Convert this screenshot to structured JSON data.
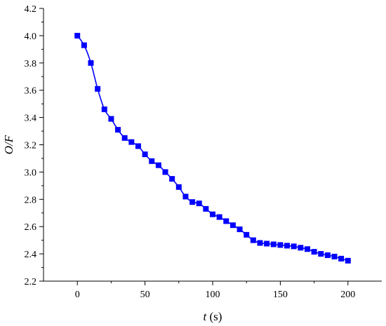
{
  "chart_data": {
    "type": "line",
    "xlabel": "t (s)",
    "xlabel_var": "t",
    "xlabel_unit": " (s)",
    "ylabel": "O/F",
    "xlim": [
      -25,
      225
    ],
    "ylim": [
      2.2,
      4.2
    ],
    "xticks": [
      0,
      50,
      100,
      150,
      200
    ],
    "xtick_labels": [
      "0",
      "50",
      "100",
      "150",
      "200"
    ],
    "yticks": [
      2.2,
      2.4,
      2.6,
      2.8,
      3.0,
      3.2,
      3.4,
      3.6,
      3.8,
      4.0,
      4.2
    ],
    "ytick_labels": [
      "2.2",
      "2.4",
      "2.6",
      "2.8",
      "3.0",
      "3.2",
      "3.4",
      "3.6",
      "3.8",
      "4.0",
      "4.2"
    ],
    "grid": false,
    "legend": false,
    "color": "#0000ff",
    "marker": "square",
    "series": [
      {
        "x": [
          0,
          5,
          10,
          15,
          20,
          25,
          30,
          35,
          40,
          45,
          50,
          55,
          60,
          65,
          70,
          75,
          80,
          85,
          90,
          95,
          100,
          105,
          110,
          115,
          120,
          125,
          130,
          135,
          140,
          145,
          150,
          155,
          160,
          165,
          170,
          175,
          180,
          185,
          190,
          195,
          200
        ],
        "y": [
          4.0,
          3.93,
          3.8,
          3.61,
          3.46,
          3.39,
          3.31,
          3.25,
          3.22,
          3.19,
          3.13,
          3.08,
          3.05,
          3.0,
          2.95,
          2.89,
          2.82,
          2.78,
          2.77,
          2.73,
          2.69,
          2.67,
          2.64,
          2.61,
          2.58,
          2.54,
          2.5,
          2.48,
          2.475,
          2.47,
          2.465,
          2.46,
          2.455,
          2.445,
          2.435,
          2.415,
          2.4,
          2.39,
          2.38,
          2.365,
          2.35
        ]
      }
    ]
  }
}
